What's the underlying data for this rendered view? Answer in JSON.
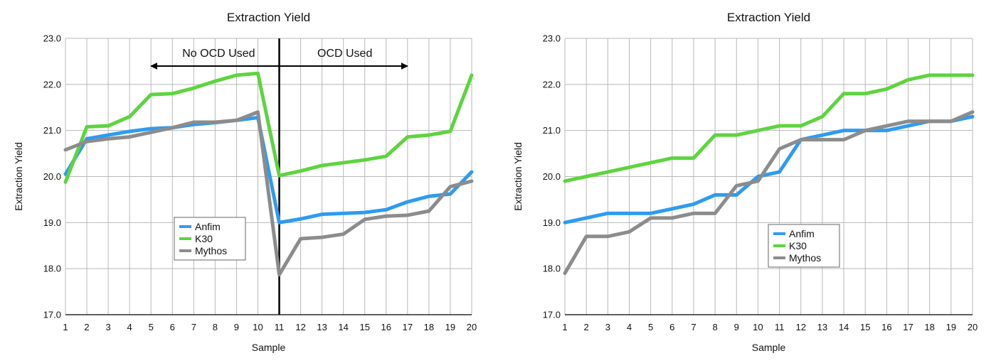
{
  "colors": {
    "Anfim": "#2e9bf0",
    "K30": "#5ed43f",
    "Mythos": "#8c8c8c"
  },
  "chart_data": [
    {
      "type": "line",
      "title": "Extraction Yield",
      "xlabel": "Sample",
      "ylabel": "Extraction Yield",
      "ylim": [
        17.0,
        23.0
      ],
      "yticks": [
        "17.0",
        "18.0",
        "19.0",
        "20.0",
        "21.0",
        "22.0",
        "23.0"
      ],
      "x": [
        1,
        2,
        3,
        4,
        5,
        6,
        7,
        8,
        9,
        10,
        11,
        12,
        13,
        14,
        15,
        16,
        17,
        18,
        19,
        20
      ],
      "grid": true,
      "legend": "center-left",
      "series": [
        {
          "name": "Anfim",
          "values": [
            20.05,
            20.82,
            20.9,
            20.98,
            21.04,
            21.06,
            21.13,
            21.17,
            21.22,
            21.28,
            19.0,
            19.08,
            19.18,
            19.2,
            19.22,
            19.28,
            19.45,
            19.57,
            19.62,
            20.1
          ]
        },
        {
          "name": "K30",
          "values": [
            19.88,
            21.08,
            21.1,
            21.3,
            21.78,
            21.8,
            21.92,
            22.07,
            22.2,
            22.24,
            20.02,
            20.12,
            20.24,
            20.3,
            20.36,
            20.44,
            20.86,
            20.9,
            20.98,
            22.2
          ]
        },
        {
          "name": "Mythos",
          "values": [
            20.58,
            20.76,
            20.82,
            20.86,
            20.96,
            21.06,
            21.18,
            21.18,
            21.22,
            21.4,
            17.87,
            18.65,
            18.68,
            18.75,
            19.07,
            19.14,
            19.16,
            19.25,
            19.78,
            19.9
          ]
        }
      ],
      "annotations": {
        "left": "No OCD Used",
        "right": "OCD Used",
        "divider_x": 11,
        "arrow_from": 5,
        "arrow_to": 17
      }
    },
    {
      "type": "line",
      "title": "Extraction Yield",
      "xlabel": "Sample",
      "ylabel": "Extraction Yield",
      "ylim": [
        17.0,
        23.0
      ],
      "yticks": [
        "17.0",
        "18.0",
        "19.0",
        "20.0",
        "21.0",
        "22.0",
        "23.0"
      ],
      "x": [
        1,
        2,
        3,
        4,
        5,
        6,
        7,
        8,
        9,
        10,
        11,
        12,
        13,
        14,
        15,
        16,
        17,
        18,
        19,
        20
      ],
      "grid": true,
      "legend": "center",
      "series": [
        {
          "name": "Anfim",
          "values": [
            19.0,
            19.1,
            19.2,
            19.2,
            19.2,
            19.3,
            19.4,
            19.6,
            19.6,
            20.0,
            20.1,
            20.8,
            20.9,
            21.0,
            21.0,
            21.0,
            21.1,
            21.2,
            21.2,
            21.3
          ]
        },
        {
          "name": "K30",
          "values": [
            19.9,
            20.0,
            20.1,
            20.2,
            20.3,
            20.4,
            20.4,
            20.9,
            20.9,
            21.0,
            21.1,
            21.1,
            21.3,
            21.8,
            21.8,
            21.9,
            22.1,
            22.2,
            22.2,
            22.2
          ]
        },
        {
          "name": "Mythos",
          "values": [
            17.9,
            18.7,
            18.7,
            18.8,
            19.1,
            19.1,
            19.2,
            19.2,
            19.8,
            19.9,
            20.6,
            20.8,
            20.8,
            20.8,
            21.0,
            21.1,
            21.2,
            21.2,
            21.2,
            21.4
          ]
        }
      ]
    }
  ]
}
